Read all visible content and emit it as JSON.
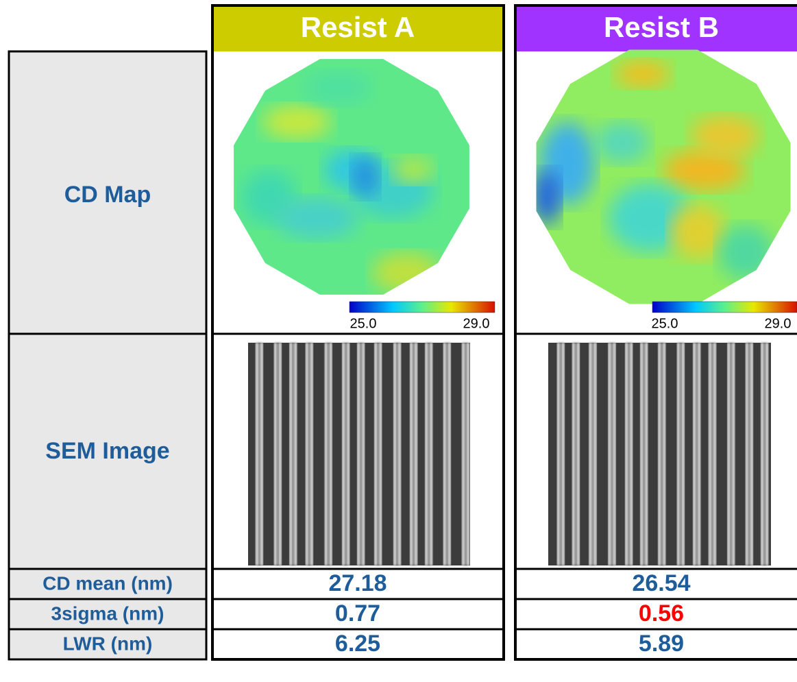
{
  "columns": [
    {
      "title": "Resist A",
      "color": "#cccc00"
    },
    {
      "title": "Resist B",
      "color": "#a033ff"
    }
  ],
  "image_rows": [
    {
      "label": "CD Map"
    },
    {
      "label": "SEM Image"
    }
  ],
  "colorbar_labels": [
    "25.0",
    "29.0"
  ],
  "metrics": [
    {
      "label": "CD mean (nm)",
      "values": [
        27.18,
        26.54
      ],
      "colors": [
        "#1f5d9a",
        "#1f5d9a"
      ]
    },
    {
      "label": "3sigma (nm)",
      "values": [
        0.77,
        0.56
      ],
      "colors": [
        "#1f5d9a",
        "#ff0000"
      ]
    },
    {
      "label": "LWR (nm)",
      "values": [
        6.25,
        5.89
      ],
      "colors": [
        "#1f5d9a",
        "#1f5d9a"
      ]
    }
  ]
}
